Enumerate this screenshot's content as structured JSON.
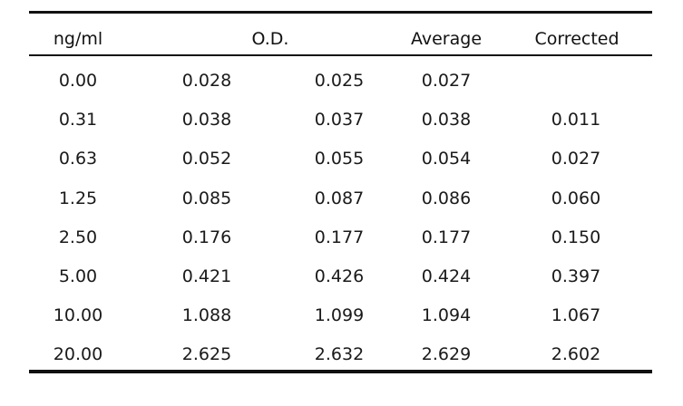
{
  "table": {
    "headers": {
      "conc": "ng/ml",
      "od": "O.D.",
      "average": "Average",
      "corrected": "Corrected"
    },
    "rows": [
      {
        "conc": "0.00",
        "od1": "0.028",
        "od2": "0.025",
        "average": "0.027",
        "corrected": ""
      },
      {
        "conc": "0.31",
        "od1": "0.038",
        "od2": "0.037",
        "average": "0.038",
        "corrected": "0.011"
      },
      {
        "conc": "0.63",
        "od1": "0.052",
        "od2": "0.055",
        "average": "0.054",
        "corrected": "0.027"
      },
      {
        "conc": "1.25",
        "od1": "0.085",
        "od2": "0.087",
        "average": "0.086",
        "corrected": "0.060"
      },
      {
        "conc": "2.50",
        "od1": "0.176",
        "od2": "0.177",
        "average": "0.177",
        "corrected": "0.150"
      },
      {
        "conc": "5.00",
        "od1": "0.421",
        "od2": "0.426",
        "average": "0.424",
        "corrected": "0.397"
      },
      {
        "conc": "10.00",
        "od1": "1.088",
        "od2": "1.099",
        "average": "1.094",
        "corrected": "1.067"
      },
      {
        "conc": "20.00",
        "od1": "2.625",
        "od2": "2.632",
        "average": "2.629",
        "corrected": "2.602"
      }
    ]
  }
}
